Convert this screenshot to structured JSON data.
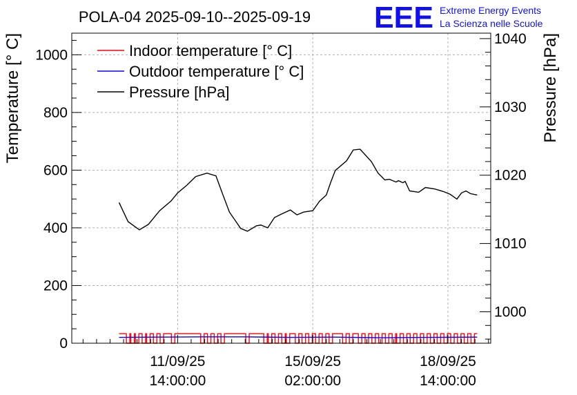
{
  "logo": {
    "letters": "EEE",
    "line1": "Extreme Energy Events",
    "line2": "La Scienza nelle Scuole",
    "color": "#1010ee"
  },
  "chart_data": {
    "type": "line",
    "title": "POLA-04 2025-09-10--2025-09-19",
    "x_unit": "hours since 11/09/25 14:00:00",
    "xlim": [
      -47,
      139
    ],
    "x_ticks": [
      {
        "x": 0,
        "label1": "11/09/25",
        "label2": "14:00:00"
      },
      {
        "x": 60,
        "label1": "15/09/25",
        "label2": "02:00:00"
      },
      {
        "x": 120,
        "label1": "18/09/25",
        "label2": "14:00:00"
      }
    ],
    "left_axis": {
      "label": "Temperature [° C]",
      "lim": [
        0,
        1075
      ],
      "ticks": [
        0,
        200,
        400,
        600,
        800,
        1000
      ]
    },
    "right_axis": {
      "label": "Pressure [hPa]",
      "lim": [
        995.4,
        1040.8
      ],
      "ticks": [
        1000,
        1010,
        1020,
        1030,
        1040
      ]
    },
    "legend": [
      {
        "label": "Indoor temperature [° C]",
        "color": "#ff0000"
      },
      {
        "label": "Outdoor temperature [° C]",
        "color": "#0000ff"
      },
      {
        "label": "Pressure [hPa]",
        "color": "#000000"
      }
    ],
    "series": [
      {
        "name": "Pressure [hPa]",
        "axis": "right",
        "color": "#000000",
        "x": [
          -26,
          -22,
          -17,
          -13,
          -8,
          -3,
          0,
          4,
          8,
          13,
          17,
          20,
          23,
          28,
          31,
          35,
          37,
          40,
          43,
          46,
          50,
          53,
          56,
          60,
          63,
          66,
          68,
          70,
          75,
          78,
          81,
          86,
          89,
          92,
          94,
          97,
          98,
          100,
          101,
          103,
          107,
          110,
          114,
          118,
          121,
          124,
          126,
          128,
          130,
          133
        ],
        "y": [
          1016.0,
          1013.2,
          1012.0,
          1012.8,
          1014.8,
          1016.2,
          1017.4,
          1018.5,
          1019.8,
          1020.3,
          1019.9,
          1017.2,
          1014.6,
          1012.2,
          1011.8,
          1012.6,
          1012.7,
          1012.3,
          1013.8,
          1014.3,
          1014.9,
          1014.2,
          1014.6,
          1014.8,
          1016.2,
          1017.1,
          1019.0,
          1020.7,
          1022.1,
          1023.7,
          1023.8,
          1022.0,
          1020.3,
          1019.3,
          1019.4,
          1019.0,
          1019.2,
          1018.9,
          1019.1,
          1017.7,
          1017.5,
          1018.2,
          1018.0,
          1017.6,
          1017.2,
          1016.5,
          1017.4,
          1017.7,
          1017.3,
          1017.1
        ]
      },
      {
        "name": "Indoor temperature [° C]",
        "axis": "left",
        "color": "#ff0000",
        "x": [
          -26,
          133
        ],
        "y": [
          33,
          33
        ],
        "drop_value": 0,
        "drops_x": [
          -22,
          -20,
          -18,
          -15,
          -13,
          -10,
          -7,
          -2,
          11,
          14,
          17,
          20,
          31,
          39,
          41,
          44,
          47,
          49,
          53,
          56,
          59,
          62,
          65,
          68,
          74,
          77,
          81,
          84,
          87,
          90,
          93,
          96,
          98,
          101,
          104,
          107,
          110,
          113,
          116,
          119,
          122,
          125,
          128,
          131
        ]
      },
      {
        "name": "Outdoor temperature [° C]",
        "axis": "left",
        "color": "#0000ff",
        "x": [
          -26,
          -10,
          10,
          30,
          50,
          70,
          90,
          110,
          133
        ],
        "y": [
          20,
          21,
          22,
          22,
          20,
          21,
          19,
          20,
          21
        ]
      }
    ]
  }
}
